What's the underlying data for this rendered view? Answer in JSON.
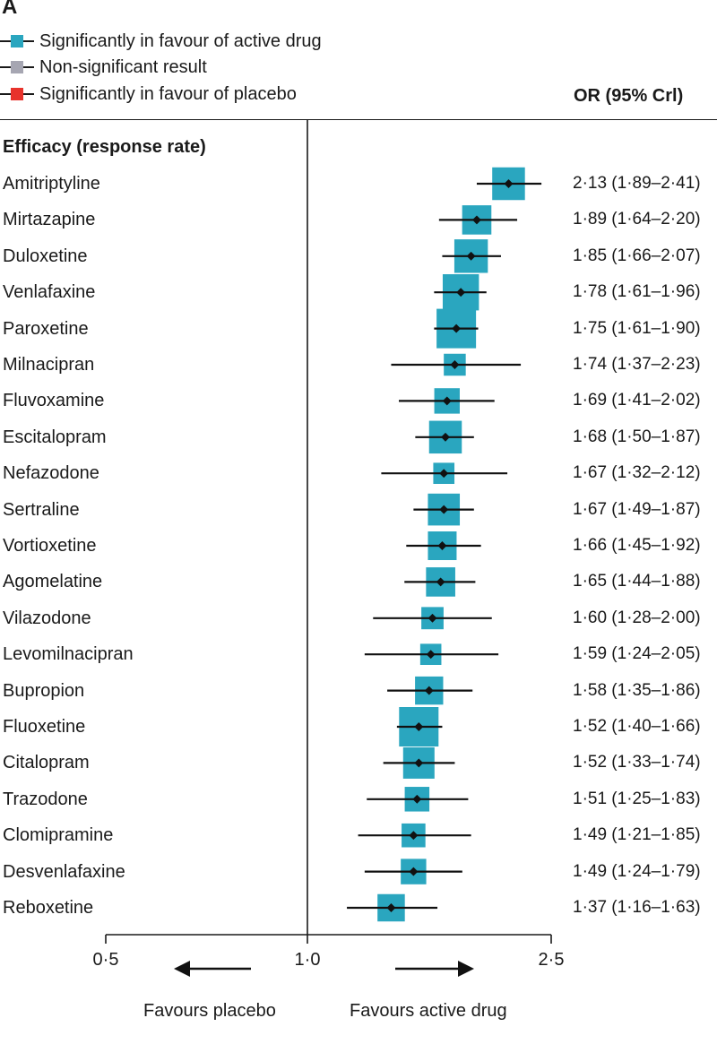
{
  "panel_label": "A",
  "legend": [
    {
      "label": "Significantly in favour of active drug",
      "color": "#2aa6bf",
      "icon": "teal-square-marker-icon"
    },
    {
      "label": "Non-significant result",
      "color": "#a6a6b2",
      "icon": "grey-square-marker-icon"
    },
    {
      "label": "Significantly in favour of placebo",
      "color": "#e8332c",
      "icon": "red-square-marker-icon"
    }
  ],
  "column_header": "OR (95% Crl)",
  "section_title": "Efficacy (response rate)",
  "direction_labels": {
    "left": "Favours placebo",
    "right": "Favours active drug"
  },
  "chart_data": {
    "type": "forest",
    "scale": "log",
    "reference_line": 1.0,
    "xlim": [
      0.5,
      2.5
    ],
    "xticks": [
      0.5,
      1.0,
      2.5
    ],
    "xtick_labels": [
      "0·5",
      "1·0",
      "2·5"
    ],
    "marker_color": "#2aa6bf",
    "rows": [
      {
        "drug": "Amitriptyline",
        "or": 2.13,
        "lower": 1.89,
        "upper": 2.41,
        "label": "2·13 (1·89–2·41)",
        "weight": 0.75
      },
      {
        "drug": "Mirtazapine",
        "or": 1.89,
        "lower": 1.64,
        "upper": 2.2,
        "label": "1·89 (1·64–2·20)",
        "weight": 0.62
      },
      {
        "drug": "Duloxetine",
        "or": 1.85,
        "lower": 1.66,
        "upper": 2.07,
        "label": "1·85 (1·66–2·07)",
        "weight": 0.78
      },
      {
        "drug": "Venlafaxine",
        "or": 1.78,
        "lower": 1.61,
        "upper": 1.96,
        "label": "1·78 (1·61–1·96)",
        "weight": 0.88
      },
      {
        "drug": "Paroxetine",
        "or": 1.75,
        "lower": 1.61,
        "upper": 1.9,
        "label": "1·75 (1·61–1·90)",
        "weight": 1.0
      },
      {
        "drug": "Milnacipran",
        "or": 1.74,
        "lower": 1.37,
        "upper": 2.23,
        "label": "1·74 (1·37–2·23)",
        "weight": 0.35
      },
      {
        "drug": "Fluvoxamine",
        "or": 1.69,
        "lower": 1.41,
        "upper": 2.02,
        "label": "1·69 (1·41–2·02)",
        "weight": 0.48
      },
      {
        "drug": "Escitalopram",
        "or": 1.68,
        "lower": 1.5,
        "upper": 1.87,
        "label": "1·68 (1·50–1·87)",
        "weight": 0.75
      },
      {
        "drug": "Nefazodone",
        "or": 1.67,
        "lower": 1.32,
        "upper": 2.12,
        "label": "1·67 (1·32–2·12)",
        "weight": 0.32
      },
      {
        "drug": "Sertraline",
        "or": 1.67,
        "lower": 1.49,
        "upper": 1.87,
        "label": "1·67 (1·49–1·87)",
        "weight": 0.72
      },
      {
        "drug": "Vortioxetine",
        "or": 1.66,
        "lower": 1.45,
        "upper": 1.92,
        "label": "1·66 (1·45–1·92)",
        "weight": 0.6
      },
      {
        "drug": "Agomelatine",
        "or": 1.65,
        "lower": 1.44,
        "upper": 1.88,
        "label": "1·65 (1·44–1·88)",
        "weight": 0.62
      },
      {
        "drug": "Vilazodone",
        "or": 1.6,
        "lower": 1.28,
        "upper": 2.0,
        "label": "1·60 (1·28–2·00)",
        "weight": 0.36
      },
      {
        "drug": "Levomilnacipran",
        "or": 1.59,
        "lower": 1.24,
        "upper": 2.05,
        "label": "1·59 (1·24–2·05)",
        "weight": 0.32
      },
      {
        "drug": "Bupropion",
        "or": 1.58,
        "lower": 1.35,
        "upper": 1.86,
        "label": "1·58 (1·35–1·86)",
        "weight": 0.58
      },
      {
        "drug": "Fluoxetine",
        "or": 1.52,
        "lower": 1.4,
        "upper": 1.66,
        "label": "1·52 (1·40–1·66)",
        "weight": 1.0
      },
      {
        "drug": "Citalopram",
        "or": 1.52,
        "lower": 1.33,
        "upper": 1.74,
        "label": "1·52 (1·33–1·74)",
        "weight": 0.7
      },
      {
        "drug": "Trazodone",
        "or": 1.51,
        "lower": 1.25,
        "upper": 1.83,
        "label": "1·51 (1·25–1·83)",
        "weight": 0.45
      },
      {
        "drug": "Clomipramine",
        "or": 1.49,
        "lower": 1.21,
        "upper": 1.85,
        "label": "1·49 (1·21–1·85)",
        "weight": 0.42
      },
      {
        "drug": "Desvenlafaxine",
        "or": 1.49,
        "lower": 1.24,
        "upper": 1.79,
        "label": "1·49 (1·24–1·79)",
        "weight": 0.48
      },
      {
        "drug": "Reboxetine",
        "or": 1.37,
        "lower": 1.16,
        "upper": 1.63,
        "label": "1·37 (1·16–1·63)",
        "weight": 0.55
      }
    ]
  }
}
